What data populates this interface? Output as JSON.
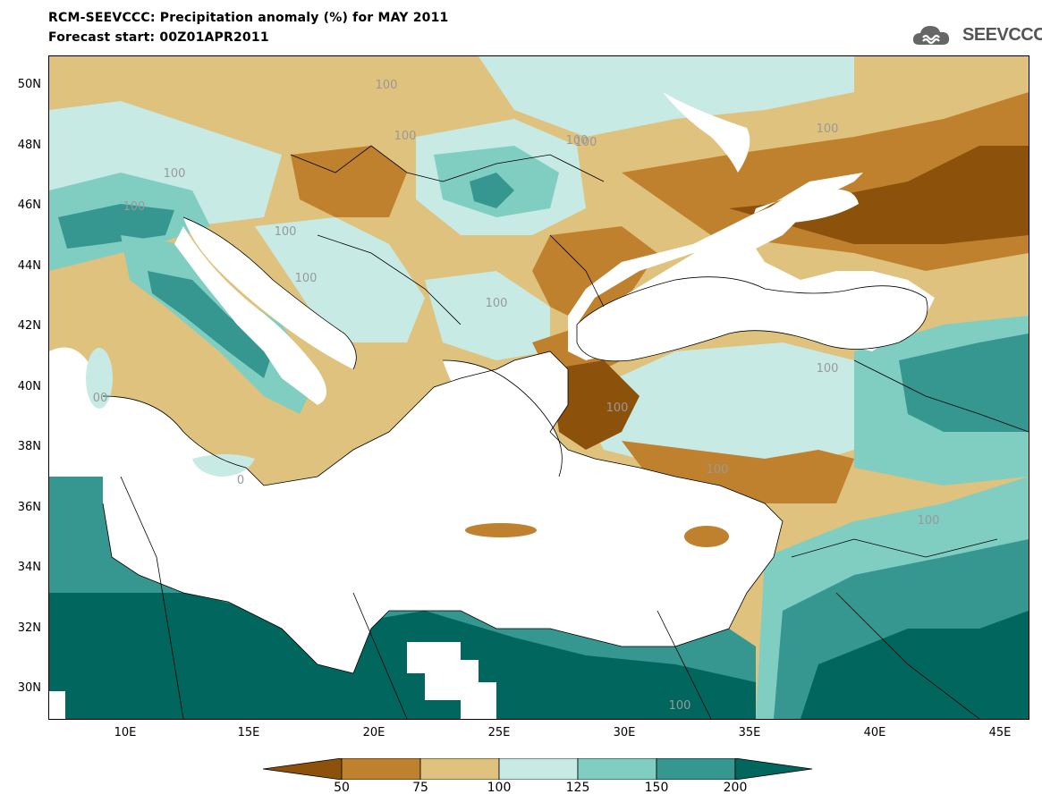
{
  "header": {
    "title_line1": "RCM-SEEVCCC: Precipitation anomaly (%) for MAY 2011",
    "title_line2": "Forecast start: 00Z01APR2011"
  },
  "logo": {
    "text": "SEEVCCC",
    "icon": "cloud-logo-icon"
  },
  "axes": {
    "lat_ticks": [
      "50N",
      "48N",
      "46N",
      "44N",
      "42N",
      "40N",
      "38N",
      "36N",
      "34N",
      "32N",
      "30N"
    ],
    "lon_ticks": [
      "10E",
      "15E",
      "20E",
      "25E",
      "30E",
      "35E",
      "40E",
      "45E"
    ]
  },
  "map": {
    "contour_labels": [
      "100",
      "100",
      "100",
      "100",
      "100",
      "100",
      "100",
      "100",
      "100",
      "100",
      "100",
      "100",
      "100",
      "100",
      "100",
      "00",
      "0"
    ],
    "land_color_default": "#dcbd7e",
    "sea_color": "#ffffff"
  },
  "colorbar": {
    "labels": [
      "50",
      "75",
      "100",
      "125",
      "150",
      "200"
    ],
    "colors": [
      "#8c510a",
      "#bf812d",
      "#dfc27d",
      "#c7eae5",
      "#80cdc1",
      "#35978f",
      "#01665e"
    ]
  }
}
